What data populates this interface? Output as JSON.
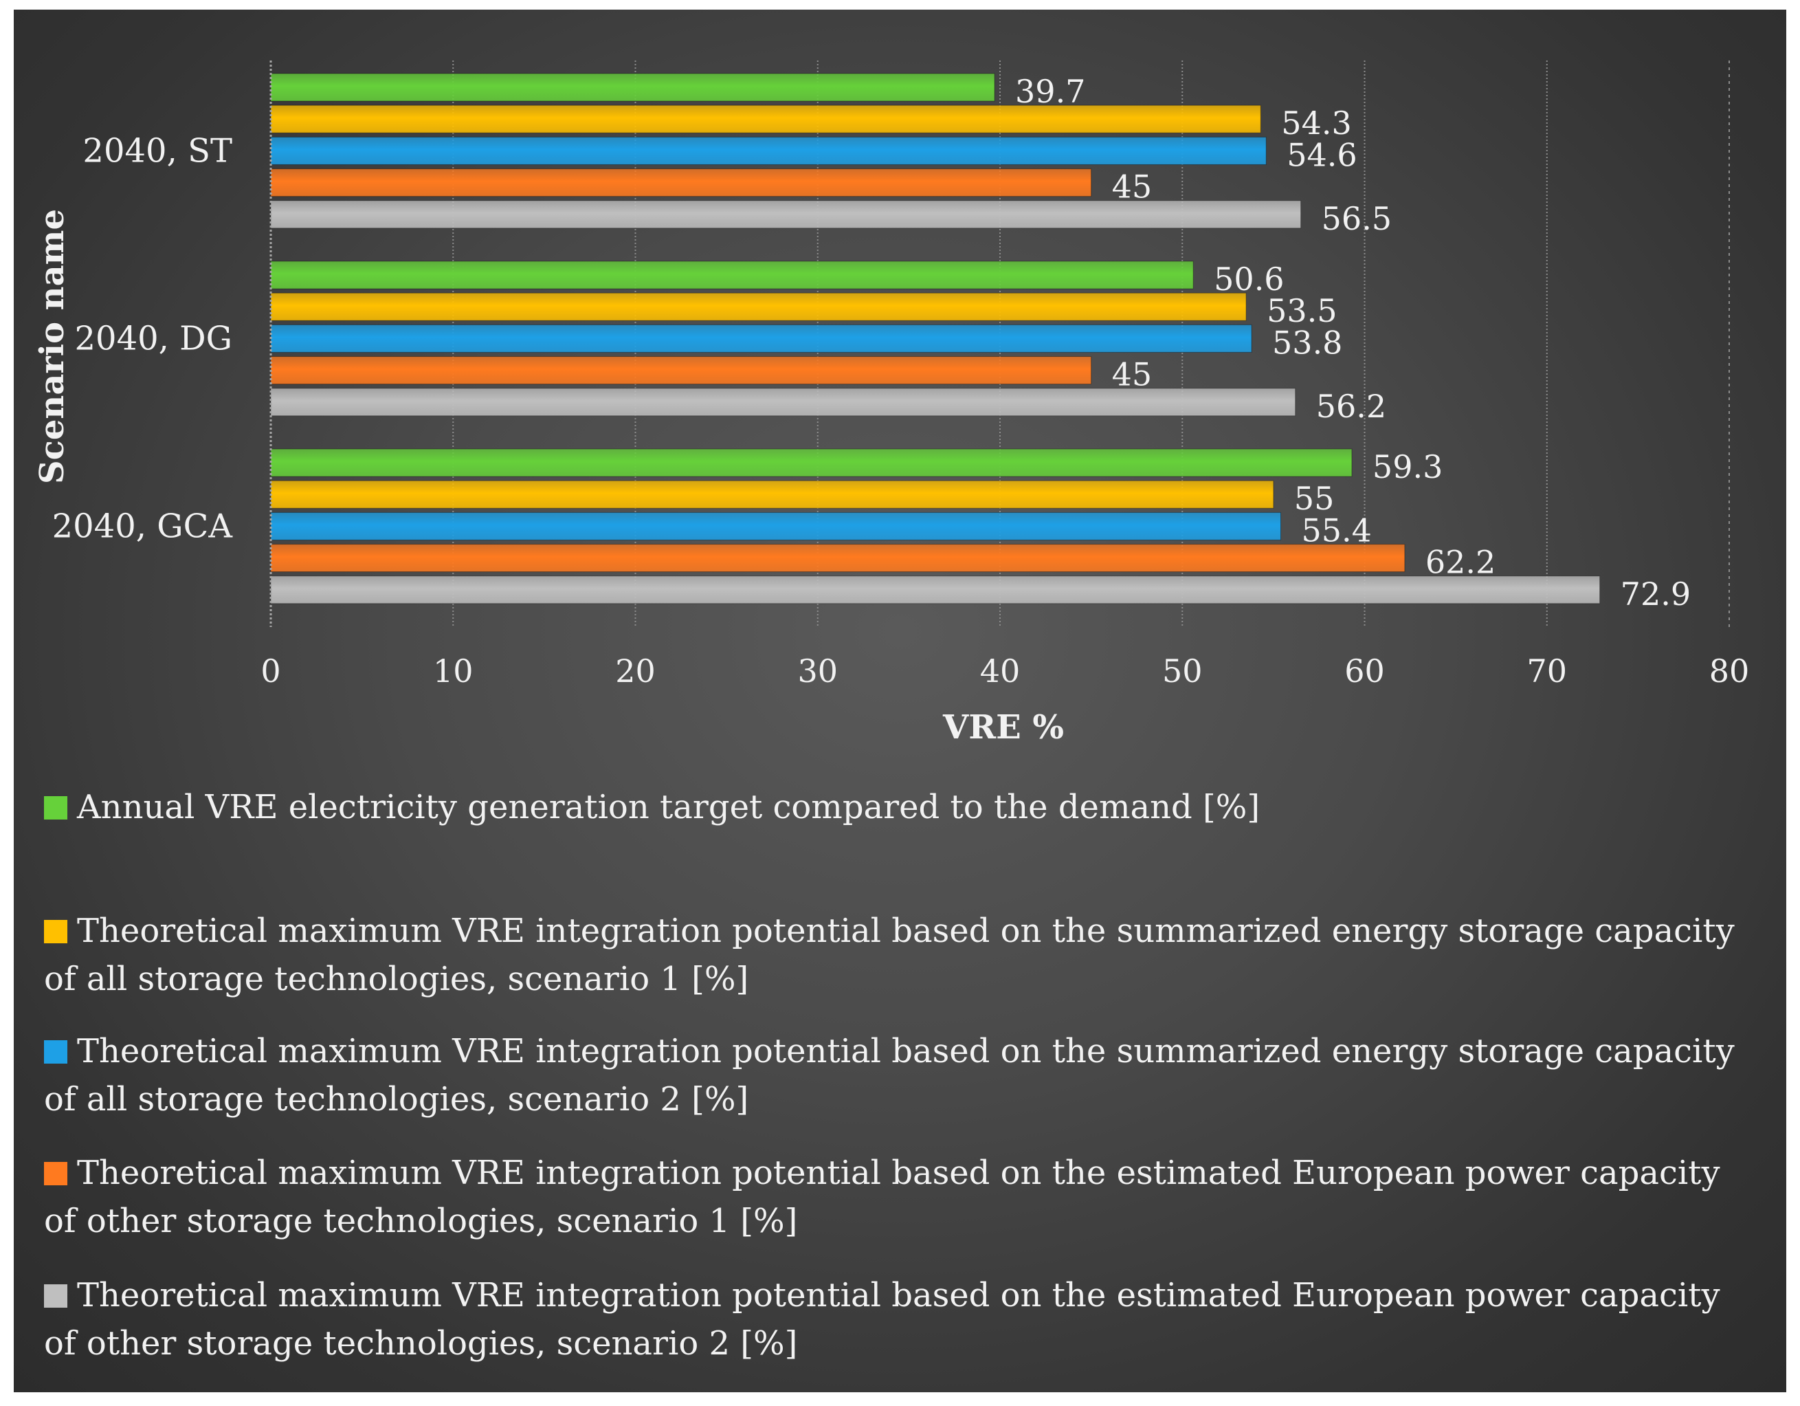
{
  "chart_data": {
    "type": "bar",
    "orientation": "horizontal",
    "categories": [
      "2040, ST",
      "2040, DG",
      "2040, GCA"
    ],
    "series": [
      {
        "name": "Annual VRE electricity generation target compared to the demand [%]",
        "color": "#66d13a",
        "values": [
          39.7,
          50.6,
          59.3
        ],
        "labels": [
          "39.7",
          "50.6",
          "59.3"
        ]
      },
      {
        "name": "Theoretical maximum VRE integration potential based on the summarized energy storage capacity of all storage technologies, scenario 1  [%]",
        "color": "#ffc000",
        "values": [
          54.3,
          53.5,
          55
        ],
        "labels": [
          "54.3",
          "53.5",
          "55"
        ]
      },
      {
        "name": "Theoretical maximum VRE integration potential based on the summarized energy storage capacity of all storage technologies, scenario 2  [%]",
        "color": "#1ea0e6",
        "values": [
          54.6,
          53.8,
          55.4
        ],
        "labels": [
          "54.6",
          "53.8",
          "55.4"
        ]
      },
      {
        "name": "Theoretical maximum VRE integration potential based on the estimated European power capacity of other storage technologies, scenario 1  [%]",
        "color": "#ff7a1f",
        "values": [
          45,
          45,
          62.2
        ],
        "labels": [
          "45",
          "45",
          "62.2"
        ]
      },
      {
        "name": "Theoretical maximum VRE integration potential based on the estimated European power capacity of other storage technologies, scenario 2  [%]",
        "color": "#bfbfbf",
        "values": [
          56.5,
          56.2,
          72.9
        ],
        "labels": [
          "56.5",
          "56.2",
          "72.9"
        ]
      }
    ],
    "xlabel": "VRE %",
    "ylabel": "Scenario name",
    "xlim": [
      0,
      80
    ],
    "xticks": [
      "0",
      "10",
      "20",
      "30",
      "40",
      "50",
      "60",
      "70",
      "80"
    ],
    "grid": true,
    "legend_position": "bottom"
  }
}
